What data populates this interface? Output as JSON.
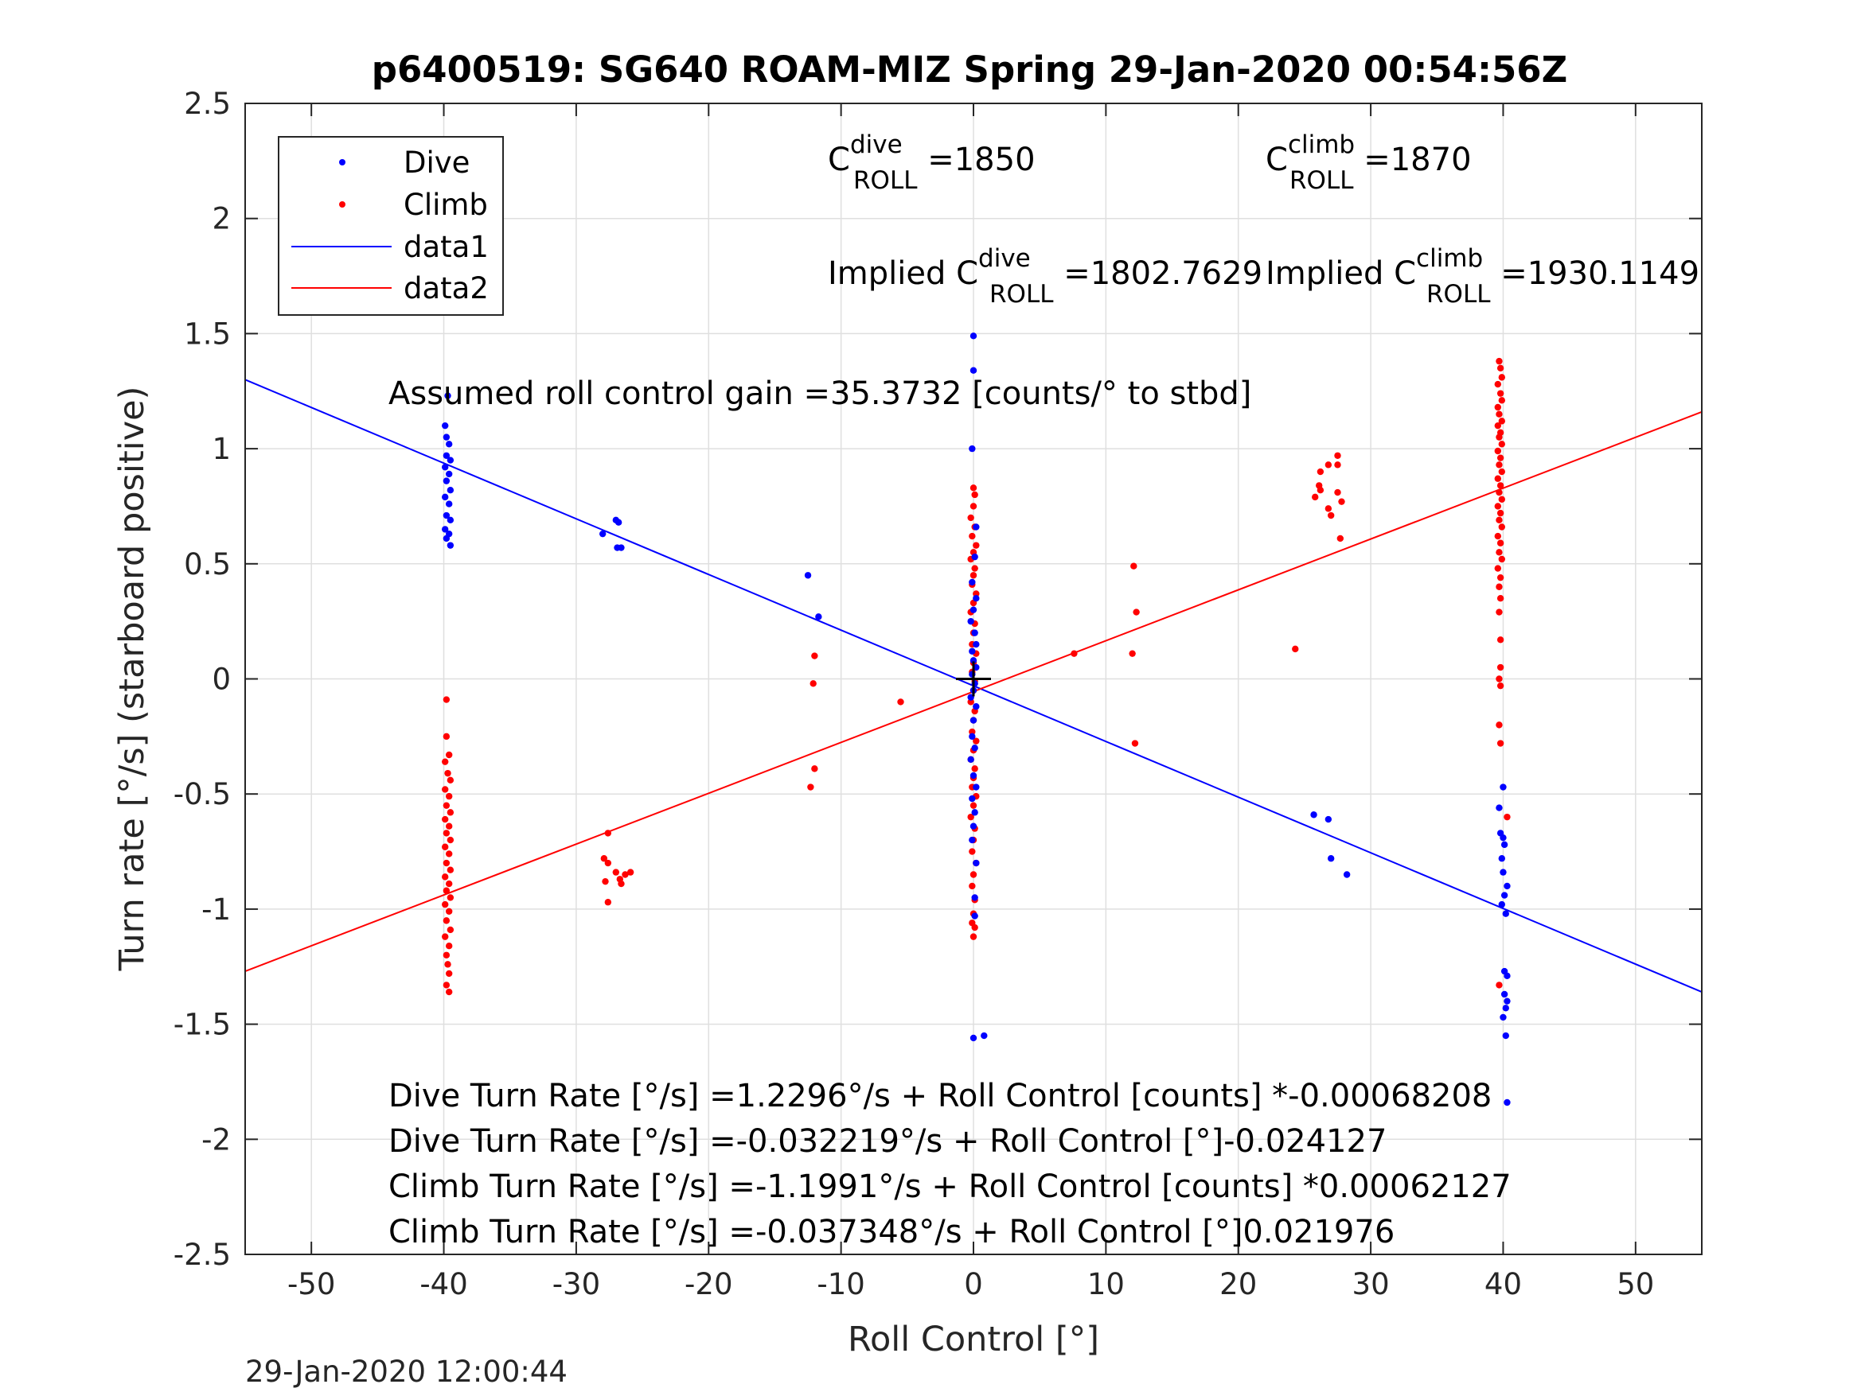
{
  "chart_data": {
    "type": "scatter",
    "title": "p6400519: SG640 ROAM-MIZ Spring 29-Jan-2020 00:54:56Z",
    "xlabel": "Roll Control [°]",
    "ylabel": "Turn rate [°/s] (starboard positive)",
    "xlim": [
      -55,
      55
    ],
    "ylim": [
      -2.5,
      2.5
    ],
    "xticks": [
      -50,
      -40,
      -30,
      -20,
      -10,
      0,
      10,
      20,
      30,
      40,
      50
    ],
    "yticks": [
      -2.5,
      -2,
      -1.5,
      -1,
      -0.5,
      0,
      0.5,
      1,
      1.5,
      2,
      2.5
    ],
    "xtick_labels": [
      "-50",
      "-40",
      "-30",
      "-20",
      "-10",
      "0",
      "10",
      "20",
      "30",
      "40",
      "50"
    ],
    "ytick_labels": [
      "-2.5",
      "-2",
      "-1.5",
      "-1",
      "-0.5",
      "0",
      "0.5",
      "1",
      "1.5",
      "2",
      "2.5"
    ],
    "grid": true,
    "legend_position": "top-left",
    "legend": [
      {
        "label": "Dive",
        "kind": "marker",
        "color": "#0000ff"
      },
      {
        "label": "Climb",
        "kind": "marker",
        "color": "#ff0000"
      },
      {
        "label": "data1",
        "kind": "line",
        "color": "#0000ff"
      },
      {
        "label": "data2",
        "kind": "line",
        "color": "#ff0000"
      }
    ],
    "series": [
      {
        "name": "Dive",
        "color": "#0000ff",
        "points": [
          [
            -39.9,
            1.1
          ],
          [
            -39.8,
            1.05
          ],
          [
            -39.6,
            1.02
          ],
          [
            -39.8,
            0.97
          ],
          [
            -39.5,
            0.95
          ],
          [
            -39.9,
            0.92
          ],
          [
            -39.6,
            0.89
          ],
          [
            -39.8,
            0.86
          ],
          [
            -39.5,
            0.82
          ],
          [
            -39.9,
            0.79
          ],
          [
            -39.6,
            0.76
          ],
          [
            -39.8,
            0.71
          ],
          [
            -39.5,
            0.69
          ],
          [
            -39.9,
            0.65
          ],
          [
            -39.6,
            0.63
          ],
          [
            -39.8,
            0.61
          ],
          [
            -39.5,
            0.58
          ],
          [
            -39.7,
            1.23
          ],
          [
            -28.0,
            0.63
          ],
          [
            -27.0,
            0.69
          ],
          [
            -26.8,
            0.68
          ],
          [
            -26.9,
            0.57
          ],
          [
            -26.6,
            0.57
          ],
          [
            -12.5,
            0.45
          ],
          [
            -11.7,
            0.27
          ],
          [
            0.0,
            1.49
          ],
          [
            0.0,
            1.34
          ],
          [
            -0.1,
            1.0
          ],
          [
            0.2,
            0.66
          ],
          [
            0.1,
            0.53
          ],
          [
            -0.1,
            0.42
          ],
          [
            0.2,
            0.35
          ],
          [
            0.0,
            0.3
          ],
          [
            -0.2,
            0.25
          ],
          [
            0.1,
            0.2
          ],
          [
            0.2,
            0.15
          ],
          [
            -0.1,
            0.12
          ],
          [
            0.0,
            0.08
          ],
          [
            0.2,
            0.05
          ],
          [
            -0.1,
            0.02
          ],
          [
            0.1,
            -0.02
          ],
          [
            0.0,
            -0.05
          ],
          [
            -0.2,
            -0.08
          ],
          [
            0.2,
            -0.12
          ],
          [
            0.0,
            -0.18
          ],
          [
            -0.1,
            -0.25
          ],
          [
            0.1,
            -0.3
          ],
          [
            -0.2,
            -0.35
          ],
          [
            0.0,
            -0.42
          ],
          [
            0.2,
            -0.47
          ],
          [
            -0.1,
            -0.52
          ],
          [
            0.1,
            -0.58
          ],
          [
            0.0,
            -0.64
          ],
          [
            -0.1,
            -0.7
          ],
          [
            0.2,
            -0.8
          ],
          [
            0.1,
            -0.95
          ],
          [
            0.1,
            -1.03
          ],
          [
            0.0,
            -1.56
          ],
          [
            0.8,
            -1.55
          ],
          [
            25.7,
            -0.59
          ],
          [
            26.8,
            -0.61
          ],
          [
            27.0,
            -0.78
          ],
          [
            28.2,
            -0.85
          ],
          [
            40.0,
            -0.47
          ],
          [
            39.7,
            -0.56
          ],
          [
            39.8,
            -0.67
          ],
          [
            40.0,
            -0.69
          ],
          [
            40.1,
            -0.72
          ],
          [
            39.9,
            -0.78
          ],
          [
            40.0,
            -0.84
          ],
          [
            40.3,
            -0.9
          ],
          [
            40.1,
            -0.94
          ],
          [
            39.9,
            -0.98
          ],
          [
            40.2,
            -1.02
          ],
          [
            40.1,
            -1.27
          ],
          [
            40.3,
            -1.29
          ],
          [
            40.1,
            -1.37
          ],
          [
            40.3,
            -1.4
          ],
          [
            40.2,
            -1.43
          ],
          [
            40.0,
            -1.47
          ],
          [
            40.2,
            -1.55
          ],
          [
            40.3,
            -1.84
          ]
        ]
      },
      {
        "name": "Climb",
        "color": "#ff0000",
        "points": [
          [
            -39.8,
            -0.09
          ],
          [
            -39.8,
            -0.25
          ],
          [
            -39.6,
            -0.33
          ],
          [
            -39.9,
            -0.36
          ],
          [
            -39.7,
            -0.41
          ],
          [
            -39.5,
            -0.44
          ],
          [
            -39.9,
            -0.48
          ],
          [
            -39.6,
            -0.51
          ],
          [
            -39.8,
            -0.55
          ],
          [
            -39.5,
            -0.58
          ],
          [
            -39.9,
            -0.61
          ],
          [
            -39.6,
            -0.64
          ],
          [
            -39.8,
            -0.67
          ],
          [
            -39.5,
            -0.7
          ],
          [
            -39.9,
            -0.73
          ],
          [
            -39.6,
            -0.76
          ],
          [
            -39.8,
            -0.8
          ],
          [
            -39.5,
            -0.83
          ],
          [
            -39.9,
            -0.86
          ],
          [
            -39.6,
            -0.89
          ],
          [
            -39.8,
            -0.92
          ],
          [
            -39.5,
            -0.95
          ],
          [
            -39.9,
            -0.98
          ],
          [
            -39.6,
            -1.01
          ],
          [
            -39.8,
            -1.05
          ],
          [
            -39.5,
            -1.09
          ],
          [
            -39.9,
            -1.12
          ],
          [
            -39.6,
            -1.16
          ],
          [
            -39.8,
            -1.2
          ],
          [
            -39.7,
            -1.24
          ],
          [
            -39.6,
            -1.28
          ],
          [
            -39.8,
            -1.33
          ],
          [
            -39.6,
            -1.36
          ],
          [
            -27.6,
            -0.67
          ],
          [
            -27.9,
            -0.78
          ],
          [
            -27.6,
            -0.8
          ],
          [
            -27.8,
            -0.88
          ],
          [
            -27.6,
            -0.97
          ],
          [
            -27.0,
            -0.84
          ],
          [
            -26.7,
            -0.87
          ],
          [
            -26.3,
            -0.85
          ],
          [
            -25.9,
            -0.84
          ],
          [
            -26.6,
            -0.89
          ],
          [
            -12.0,
            0.1
          ],
          [
            -12.1,
            -0.02
          ],
          [
            -12.0,
            -0.39
          ],
          [
            -12.3,
            -0.47
          ],
          [
            -5.5,
            -0.1
          ],
          [
            0.0,
            0.83
          ],
          [
            0.1,
            0.8
          ],
          [
            0.0,
            0.75
          ],
          [
            -0.2,
            0.7
          ],
          [
            0.1,
            0.66
          ],
          [
            -0.1,
            0.62
          ],
          [
            0.2,
            0.58
          ],
          [
            0.0,
            0.55
          ],
          [
            -0.2,
            0.52
          ],
          [
            0.1,
            0.48
          ],
          [
            0.0,
            0.45
          ],
          [
            -0.1,
            0.41
          ],
          [
            0.2,
            0.37
          ],
          [
            0.0,
            0.33
          ],
          [
            -0.2,
            0.29
          ],
          [
            0.1,
            0.24
          ],
          [
            0.0,
            0.2
          ],
          [
            -0.1,
            0.15
          ],
          [
            0.2,
            0.11
          ],
          [
            0.0,
            0.07
          ],
          [
            -0.1,
            0.03
          ],
          [
            0.1,
            -0.01
          ],
          [
            0.0,
            -0.05
          ],
          [
            -0.2,
            -0.1
          ],
          [
            0.1,
            -0.14
          ],
          [
            0.0,
            -0.18
          ],
          [
            -0.1,
            -0.23
          ],
          [
            0.2,
            -0.27
          ],
          [
            0.0,
            -0.31
          ],
          [
            -0.2,
            -0.35
          ],
          [
            0.1,
            -0.39
          ],
          [
            0.0,
            -0.43
          ],
          [
            -0.1,
            -0.47
          ],
          [
            0.2,
            -0.51
          ],
          [
            0.0,
            -0.55
          ],
          [
            -0.2,
            -0.6
          ],
          [
            0.1,
            -0.65
          ],
          [
            0.0,
            -0.7
          ],
          [
            -0.1,
            -0.75
          ],
          [
            0.2,
            -0.8
          ],
          [
            0.0,
            -0.85
          ],
          [
            -0.1,
            -0.9
          ],
          [
            0.1,
            -0.96
          ],
          [
            0.0,
            -1.02
          ],
          [
            -0.1,
            -1.06
          ],
          [
            0.1,
            -1.08
          ],
          [
            0.0,
            -1.12
          ],
          [
            7.6,
            0.11
          ],
          [
            12.0,
            0.11
          ],
          [
            12.1,
            0.49
          ],
          [
            12.3,
            0.29
          ],
          [
            12.2,
            -0.28
          ],
          [
            24.3,
            0.13
          ],
          [
            25.8,
            0.79
          ],
          [
            26.2,
            0.82
          ],
          [
            26.1,
            0.84
          ],
          [
            26.2,
            0.9
          ],
          [
            26.8,
            0.93
          ],
          [
            27.5,
            0.97
          ],
          [
            27.5,
            0.93
          ],
          [
            27.5,
            0.81
          ],
          [
            27.8,
            0.77
          ],
          [
            26.8,
            0.74
          ],
          [
            27.0,
            0.71
          ],
          [
            27.7,
            0.61
          ],
          [
            39.7,
            1.38
          ],
          [
            39.8,
            1.35
          ],
          [
            39.9,
            1.31
          ],
          [
            39.6,
            1.28
          ],
          [
            39.8,
            1.24
          ],
          [
            39.9,
            1.21
          ],
          [
            39.6,
            1.18
          ],
          [
            39.7,
            1.15
          ],
          [
            39.9,
            1.12
          ],
          [
            39.6,
            1.1
          ],
          [
            39.8,
            1.07
          ],
          [
            39.7,
            1.05
          ],
          [
            39.9,
            1.02
          ],
          [
            39.6,
            0.99
          ],
          [
            39.8,
            0.96
          ],
          [
            39.7,
            0.93
          ],
          [
            39.9,
            0.9
          ],
          [
            39.6,
            0.87
          ],
          [
            39.8,
            0.84
          ],
          [
            39.7,
            0.81
          ],
          [
            39.9,
            0.78
          ],
          [
            39.6,
            0.75
          ],
          [
            39.8,
            0.72
          ],
          [
            39.7,
            0.69
          ],
          [
            39.9,
            0.66
          ],
          [
            39.6,
            0.62
          ],
          [
            39.8,
            0.59
          ],
          [
            39.7,
            0.55
          ],
          [
            39.9,
            0.52
          ],
          [
            39.6,
            0.48
          ],
          [
            39.8,
            0.44
          ],
          [
            39.7,
            0.4
          ],
          [
            39.8,
            0.35
          ],
          [
            39.7,
            0.29
          ],
          [
            39.8,
            0.17
          ],
          [
            39.8,
            0.05
          ],
          [
            39.7,
            0.0
          ],
          [
            39.8,
            -0.03
          ],
          [
            39.7,
            -0.2
          ],
          [
            39.8,
            -0.28
          ],
          [
            39.7,
            -1.33
          ],
          [
            40.3,
            -0.6
          ]
        ]
      },
      {
        "name": "data1",
        "color": "#0000ff",
        "line": [
          [
            -55,
            1.3
          ],
          [
            55,
            -1.36
          ]
        ]
      },
      {
        "name": "data2",
        "color": "#ff0000",
        "line": [
          [
            -55,
            -1.27
          ],
          [
            55,
            1.16
          ]
        ]
      }
    ],
    "crosshair": [
      0,
      0
    ],
    "annotations": {
      "c_roll_dive": {
        "prefix": "C",
        "sup": "dive",
        "sub": "ROLL",
        "value": " =1850"
      },
      "c_roll_climb": {
        "prefix": "C",
        "sup": "climb",
        "sub": "ROLL",
        "value": " =1870"
      },
      "implied_dive": {
        "prefix": "Implied C",
        "sup": "dive",
        "sub": "ROLL",
        "value": " =1802.7629"
      },
      "implied_climb": {
        "prefix": "Implied C",
        "sup": "climb",
        "sub": "ROLL",
        "value": " =1930.1149"
      },
      "gain": "Assumed roll control gain =35.3732 [counts/° to stbd]",
      "fit_lines": [
        "Dive Turn Rate [°/s] =1.2296°/s + Roll Control [counts] *-0.00068208",
        "Dive Turn Rate [°/s] =-0.032219°/s + Roll Control [°]-0.024127",
        "Climb Turn Rate [°/s] =-1.1991°/s + Roll Control [counts] *0.00062127",
        "Climb Turn Rate [°/s] =-0.037348°/s + Roll Control [°]0.021976"
      ]
    }
  },
  "footer_timestamp": "29-Jan-2020 12:00:44"
}
